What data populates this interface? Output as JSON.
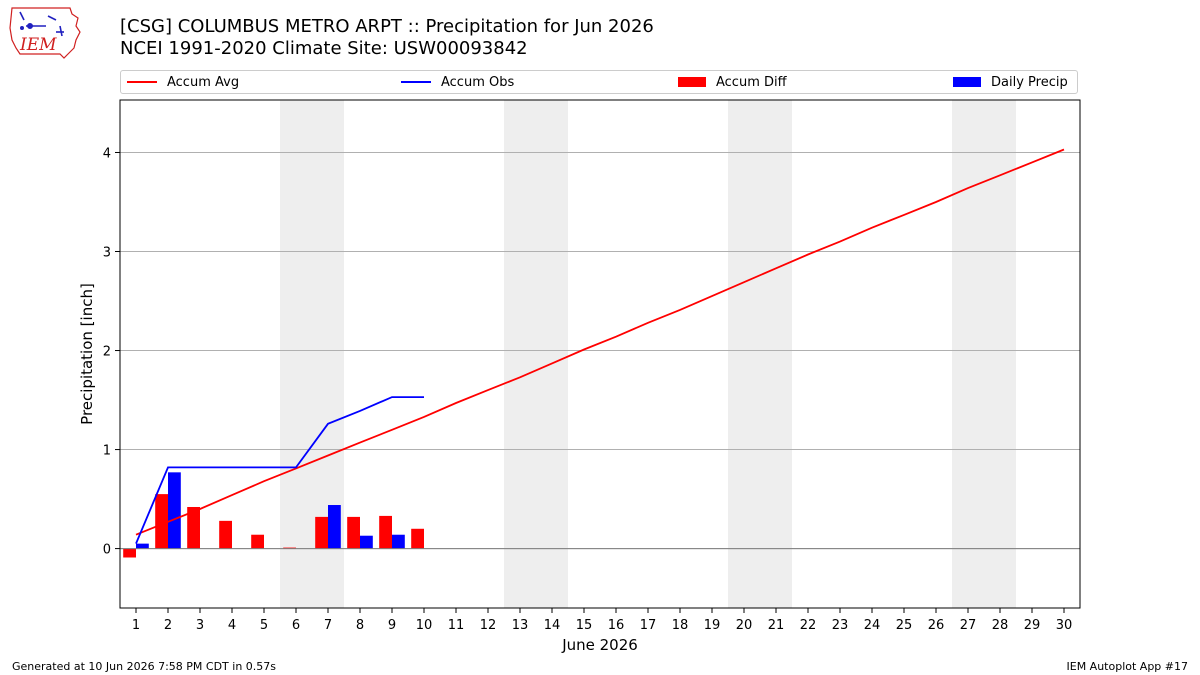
{
  "header": {
    "title_line1": "[CSG] COLUMBUS METRO ARPT :: Precipitation for Jun 2026",
    "title_line2": "NCEI 1991-2020 Climate Site: USW00093842"
  },
  "logo": {
    "text": "IEM"
  },
  "legend": {
    "placement": "top",
    "items": [
      {
        "label": "Accum Avg",
        "kind": "line",
        "color": "#ff0000"
      },
      {
        "label": "Accum Obs",
        "kind": "line",
        "color": "#0000ff"
      },
      {
        "label": "Accum Diff",
        "kind": "bar",
        "color": "#ff0000"
      },
      {
        "label": "Daily Precip",
        "kind": "bar",
        "color": "#0000ff"
      }
    ]
  },
  "footer": {
    "left": "Generated at 10 Jun 2026 7:58 PM CDT in 0.57s",
    "right": "IEM Autoplot App #17"
  },
  "chart_data": {
    "type": "bar",
    "xlabel": "June 2026",
    "ylabel": "Precipitation [inch]",
    "xlim": [
      0.5,
      30.5
    ],
    "ylim": [
      -0.6,
      4.53
    ],
    "y_ticks": [
      0,
      1,
      2,
      3,
      4
    ],
    "x_ticks": [
      1,
      2,
      3,
      4,
      5,
      6,
      7,
      8,
      9,
      10,
      11,
      12,
      13,
      14,
      15,
      16,
      17,
      18,
      19,
      20,
      21,
      22,
      23,
      24,
      25,
      26,
      27,
      28,
      29,
      30
    ],
    "grid": "y",
    "weekend_shading": [
      [
        6,
        7
      ],
      [
        13,
        14
      ],
      [
        20,
        21
      ],
      [
        27,
        28
      ]
    ],
    "shade_color": "#eeeeee",
    "series": [
      {
        "name": "Accum Avg",
        "kind": "line",
        "color": "#ff0000",
        "x": [
          1,
          2,
          3,
          4,
          5,
          6,
          7,
          8,
          9,
          10,
          11,
          12,
          13,
          14,
          15,
          16,
          17,
          18,
          19,
          20,
          21,
          22,
          23,
          24,
          25,
          26,
          27,
          28,
          29,
          30
        ],
        "values": [
          0.14,
          0.27,
          0.4,
          0.54,
          0.68,
          0.81,
          0.94,
          1.07,
          1.2,
          1.33,
          1.47,
          1.6,
          1.73,
          1.87,
          2.01,
          2.14,
          2.28,
          2.41,
          2.55,
          2.69,
          2.83,
          2.97,
          3.1,
          3.24,
          3.37,
          3.5,
          3.64,
          3.77,
          3.9,
          4.03
        ]
      },
      {
        "name": "Accum Obs",
        "kind": "line",
        "color": "#0000ff",
        "x": [
          1,
          2,
          3,
          4,
          5,
          6,
          7,
          8,
          9,
          10
        ],
        "values": [
          0.05,
          0.82,
          0.82,
          0.82,
          0.82,
          0.82,
          1.26,
          1.39,
          1.53,
          1.53
        ]
      },
      {
        "name": "Accum Diff",
        "kind": "bar",
        "color": "#ff0000",
        "x": [
          1,
          2,
          3,
          4,
          5,
          6,
          7,
          8,
          9,
          10
        ],
        "values": [
          -0.09,
          0.55,
          0.42,
          0.28,
          0.14,
          0.01,
          0.32,
          0.32,
          0.33,
          0.2
        ]
      },
      {
        "name": "Daily Precip",
        "kind": "bar",
        "color": "#0000ff",
        "x": [
          1,
          2,
          3,
          4,
          5,
          6,
          7,
          8,
          9,
          10
        ],
        "values": [
          0.05,
          0.77,
          0.0,
          0.0,
          0.0,
          0.0,
          0.44,
          0.13,
          0.14,
          0.0
        ]
      }
    ]
  }
}
